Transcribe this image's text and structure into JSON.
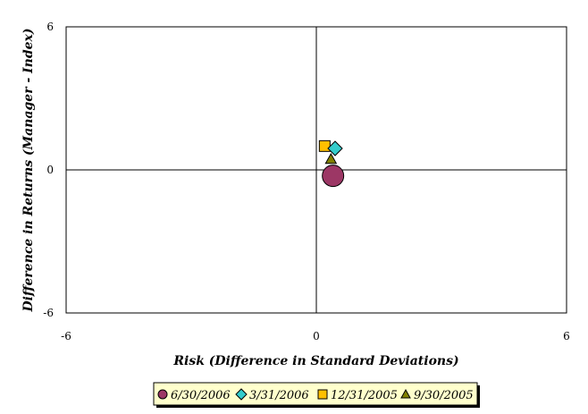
{
  "chart_data": {
    "type": "scatter",
    "title": "",
    "xlabel": "Risk (Difference in Standard Deviations)",
    "ylabel": "Difference in Returns (Manager - Index)",
    "xlim": [
      -6,
      6
    ],
    "ylim": [
      -6,
      6
    ],
    "xticks": [
      "-6",
      "0",
      "6"
    ],
    "yticks": [
      "6",
      "0",
      "-6"
    ],
    "grid": false,
    "legend_position": "bottom",
    "series": [
      {
        "name": "6/30/2006",
        "marker": "circle-large",
        "color": "#9c3765",
        "x": 0.4,
        "y": -0.25
      },
      {
        "name": "3/31/2006",
        "marker": "diamond",
        "color": "#33cccc",
        "x": 0.45,
        "y": 0.9
      },
      {
        "name": "12/31/2005",
        "marker": "square",
        "color": "#ffc000",
        "x": 0.2,
        "y": 1.0
      },
      {
        "name": "9/30/2005",
        "marker": "triangle",
        "color": "#808000",
        "x": 0.35,
        "y": 0.45
      }
    ]
  }
}
